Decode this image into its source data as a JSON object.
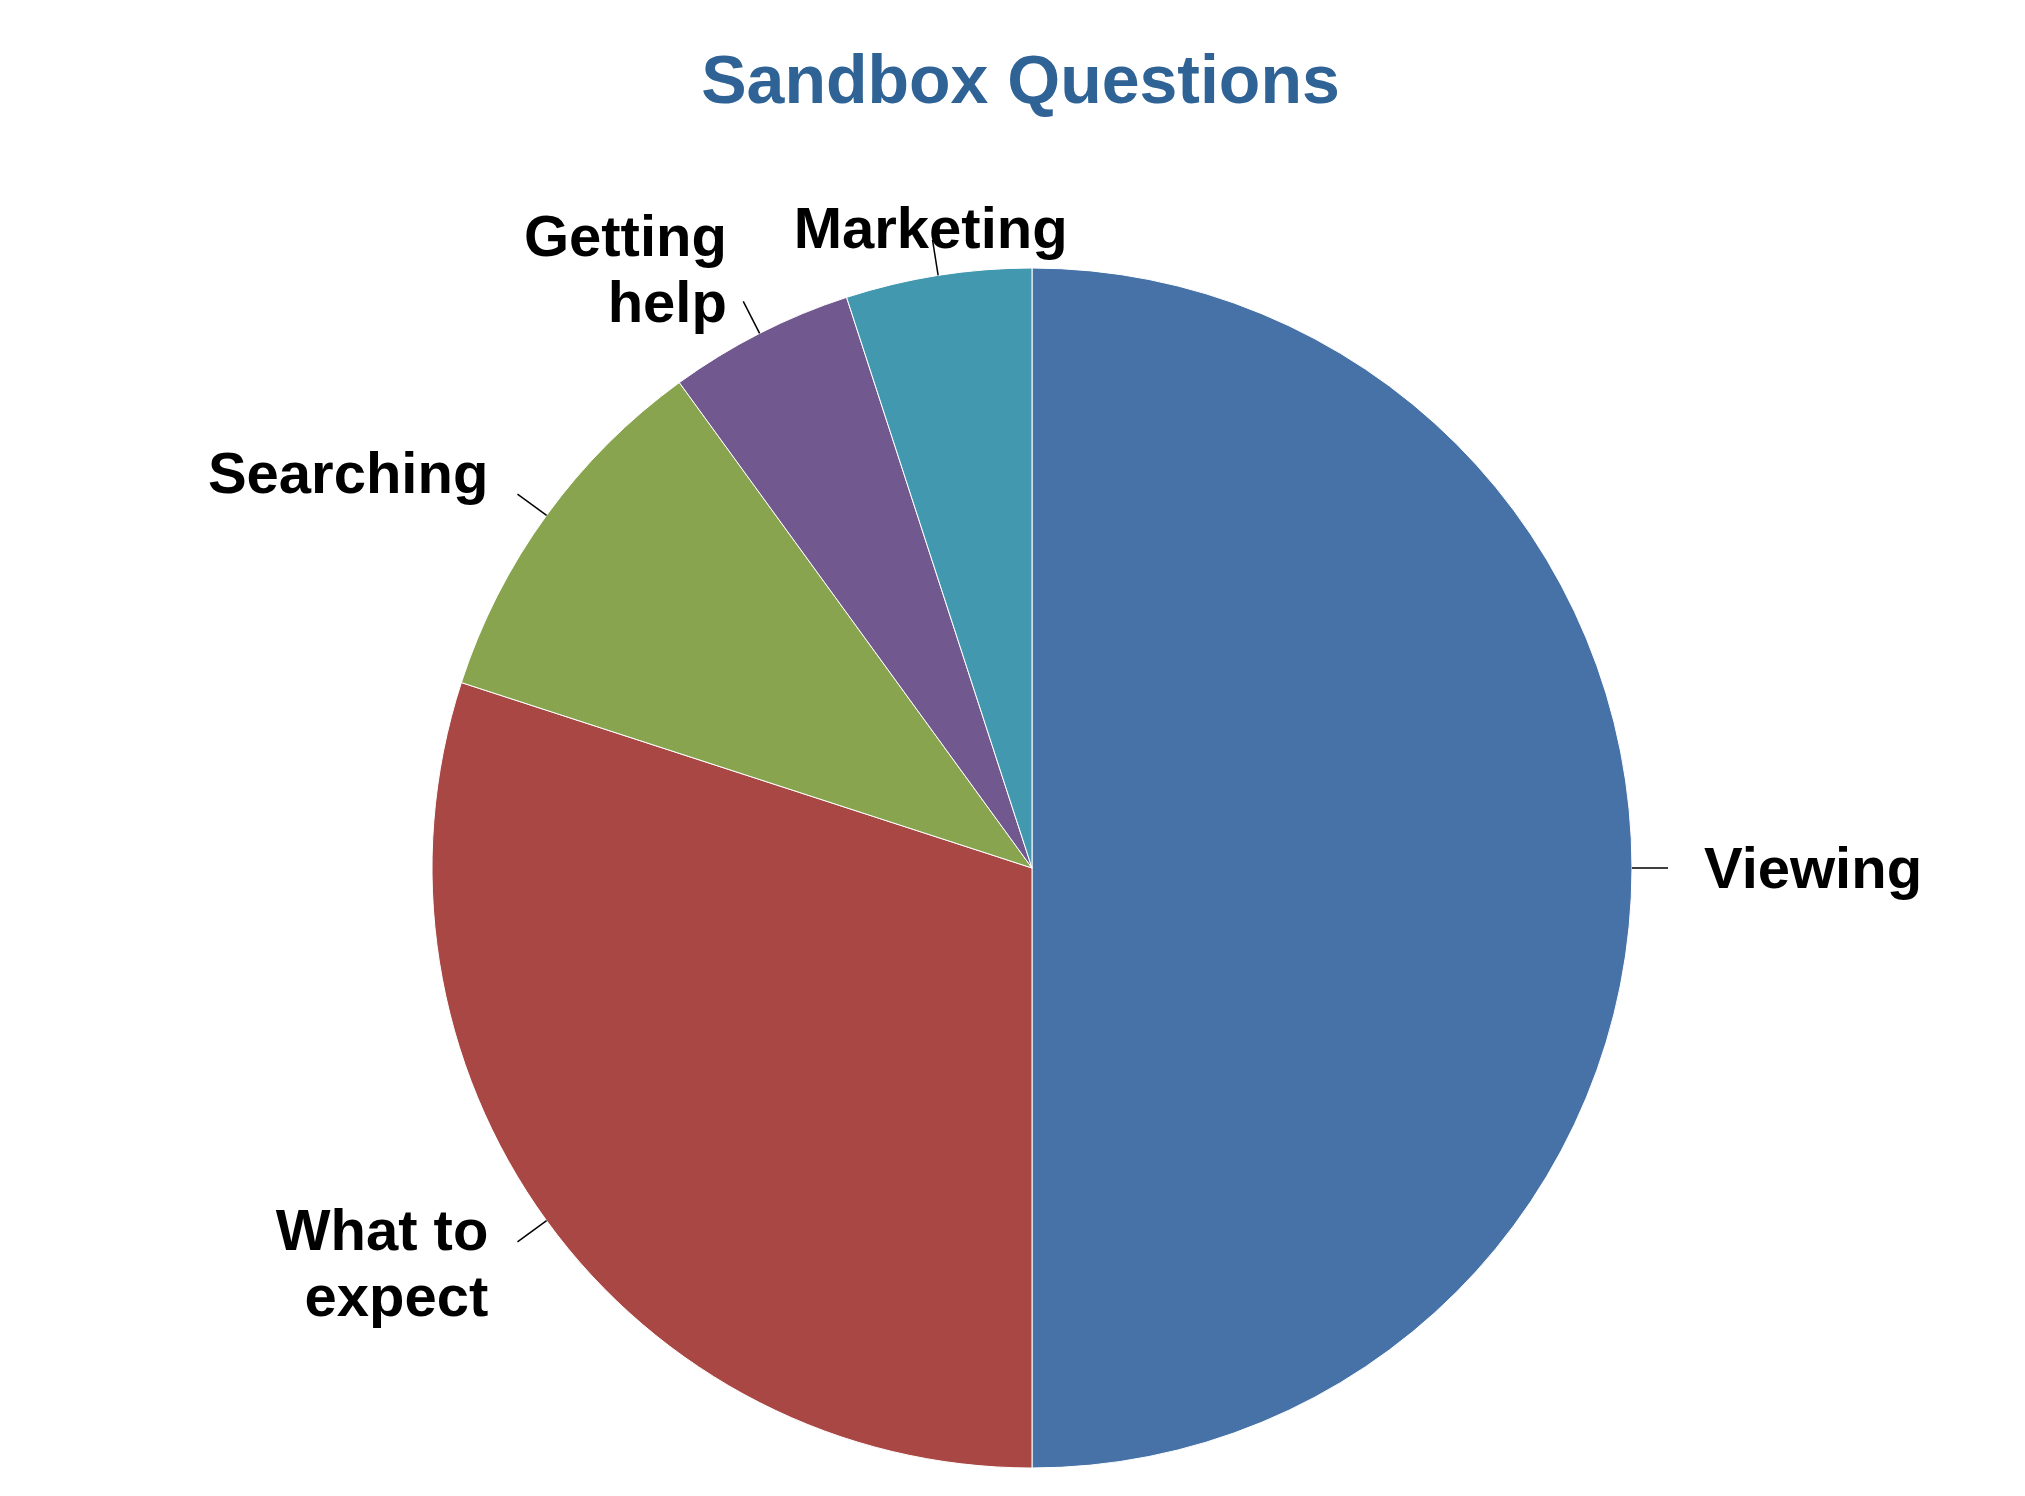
{
  "chart_data": {
    "type": "pie",
    "title": "Sandbox Questions",
    "categories": [
      "Viewing",
      "What to expect",
      "Searching",
      "Getting help",
      "Marketing"
    ],
    "values": [
      50,
      30,
      10,
      5,
      5
    ],
    "colors": [
      "#4672a7",
      "#a94744",
      "#89a44e",
      "#71588f",
      "#4298af"
    ]
  }
}
